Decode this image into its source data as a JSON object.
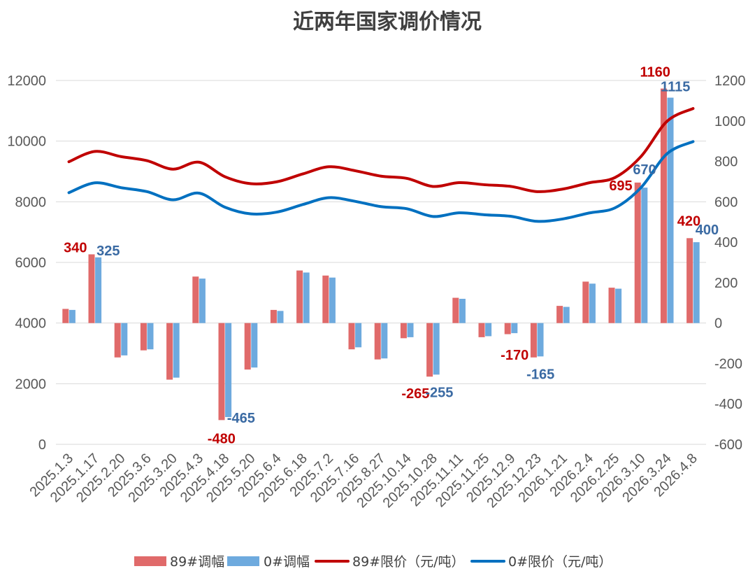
{
  "chart_data": {
    "type": "bar",
    "title": "近两年国家调价情况",
    "categories": [
      "2025.1.3",
      "2025.1.17",
      "2025.2.20",
      "2025.3.6",
      "2025.3.20",
      "2025.4.3",
      "2025.4.18",
      "2025.5.20",
      "2025.6.4",
      "2025.6.18",
      "2025.7.2",
      "2025.7.16",
      "2025.8.27",
      "2025.10.14",
      "2025.10.28",
      "2025.11.11",
      "2025.11.25",
      "2025.12.9",
      "2025.12.23",
      "2026.1.21",
      "2026.2.4",
      "2026.2.25",
      "2026.3.10",
      "2026.3.24",
      "2026.4.8"
    ],
    "y_left": {
      "range": [
        0,
        12000
      ],
      "ticks": [
        0,
        2000,
        4000,
        6000,
        8000,
        10000,
        12000
      ]
    },
    "y_right": {
      "range": [
        -600,
        1200
      ],
      "ticks": [
        -600,
        -400,
        -200,
        0,
        200,
        400,
        600,
        800,
        1000,
        1200
      ]
    },
    "grid": true,
    "legend_position": "bottom",
    "data_labels_at": [
      1,
      6,
      14,
      18,
      22,
      23,
      24
    ],
    "series": [
      {
        "name": "89#调幅",
        "type": "bar",
        "axis": "right",
        "color": "#e06a6a",
        "label_color": "#c00000",
        "values": [
          70,
          340,
          -170,
          -135,
          -280,
          230,
          -480,
          -230,
          65,
          260,
          235,
          -130,
          -180,
          -75,
          -265,
          125,
          -70,
          -55,
          -170,
          85,
          205,
          175,
          695,
          1160,
          420
        ]
      },
      {
        "name": "0#调幅",
        "type": "bar",
        "axis": "right",
        "color": "#6eaade",
        "label_color": "#3a6aa3",
        "values": [
          65,
          325,
          -160,
          -130,
          -270,
          220,
          -465,
          -220,
          60,
          250,
          225,
          -120,
          -175,
          -70,
          -255,
          120,
          -65,
          -50,
          -165,
          80,
          195,
          170,
          670,
          1115,
          400
        ]
      },
      {
        "name": "89#限价（元/吨）",
        "type": "line",
        "axis": "left",
        "color": "#c00000",
        "values": [
          9320,
          9660,
          9490,
          9355,
          9075,
          9305,
          8825,
          8595,
          8660,
          8920,
          9155,
          9025,
          8845,
          8770,
          8505,
          8630,
          8560,
          8505,
          8335,
          8420,
          8625,
          8800,
          9495,
          10655,
          11075
        ]
      },
      {
        "name": "0#限价（元/吨）",
        "type": "line",
        "axis": "left",
        "color": "#0070c0",
        "values": [
          8300,
          8625,
          8465,
          8335,
          8065,
          8285,
          7820,
          7600,
          7660,
          7910,
          8135,
          8015,
          7840,
          7770,
          7515,
          7635,
          7570,
          7520,
          7355,
          7435,
          7630,
          7800,
          8470,
          9585,
          9985
        ]
      }
    ]
  }
}
